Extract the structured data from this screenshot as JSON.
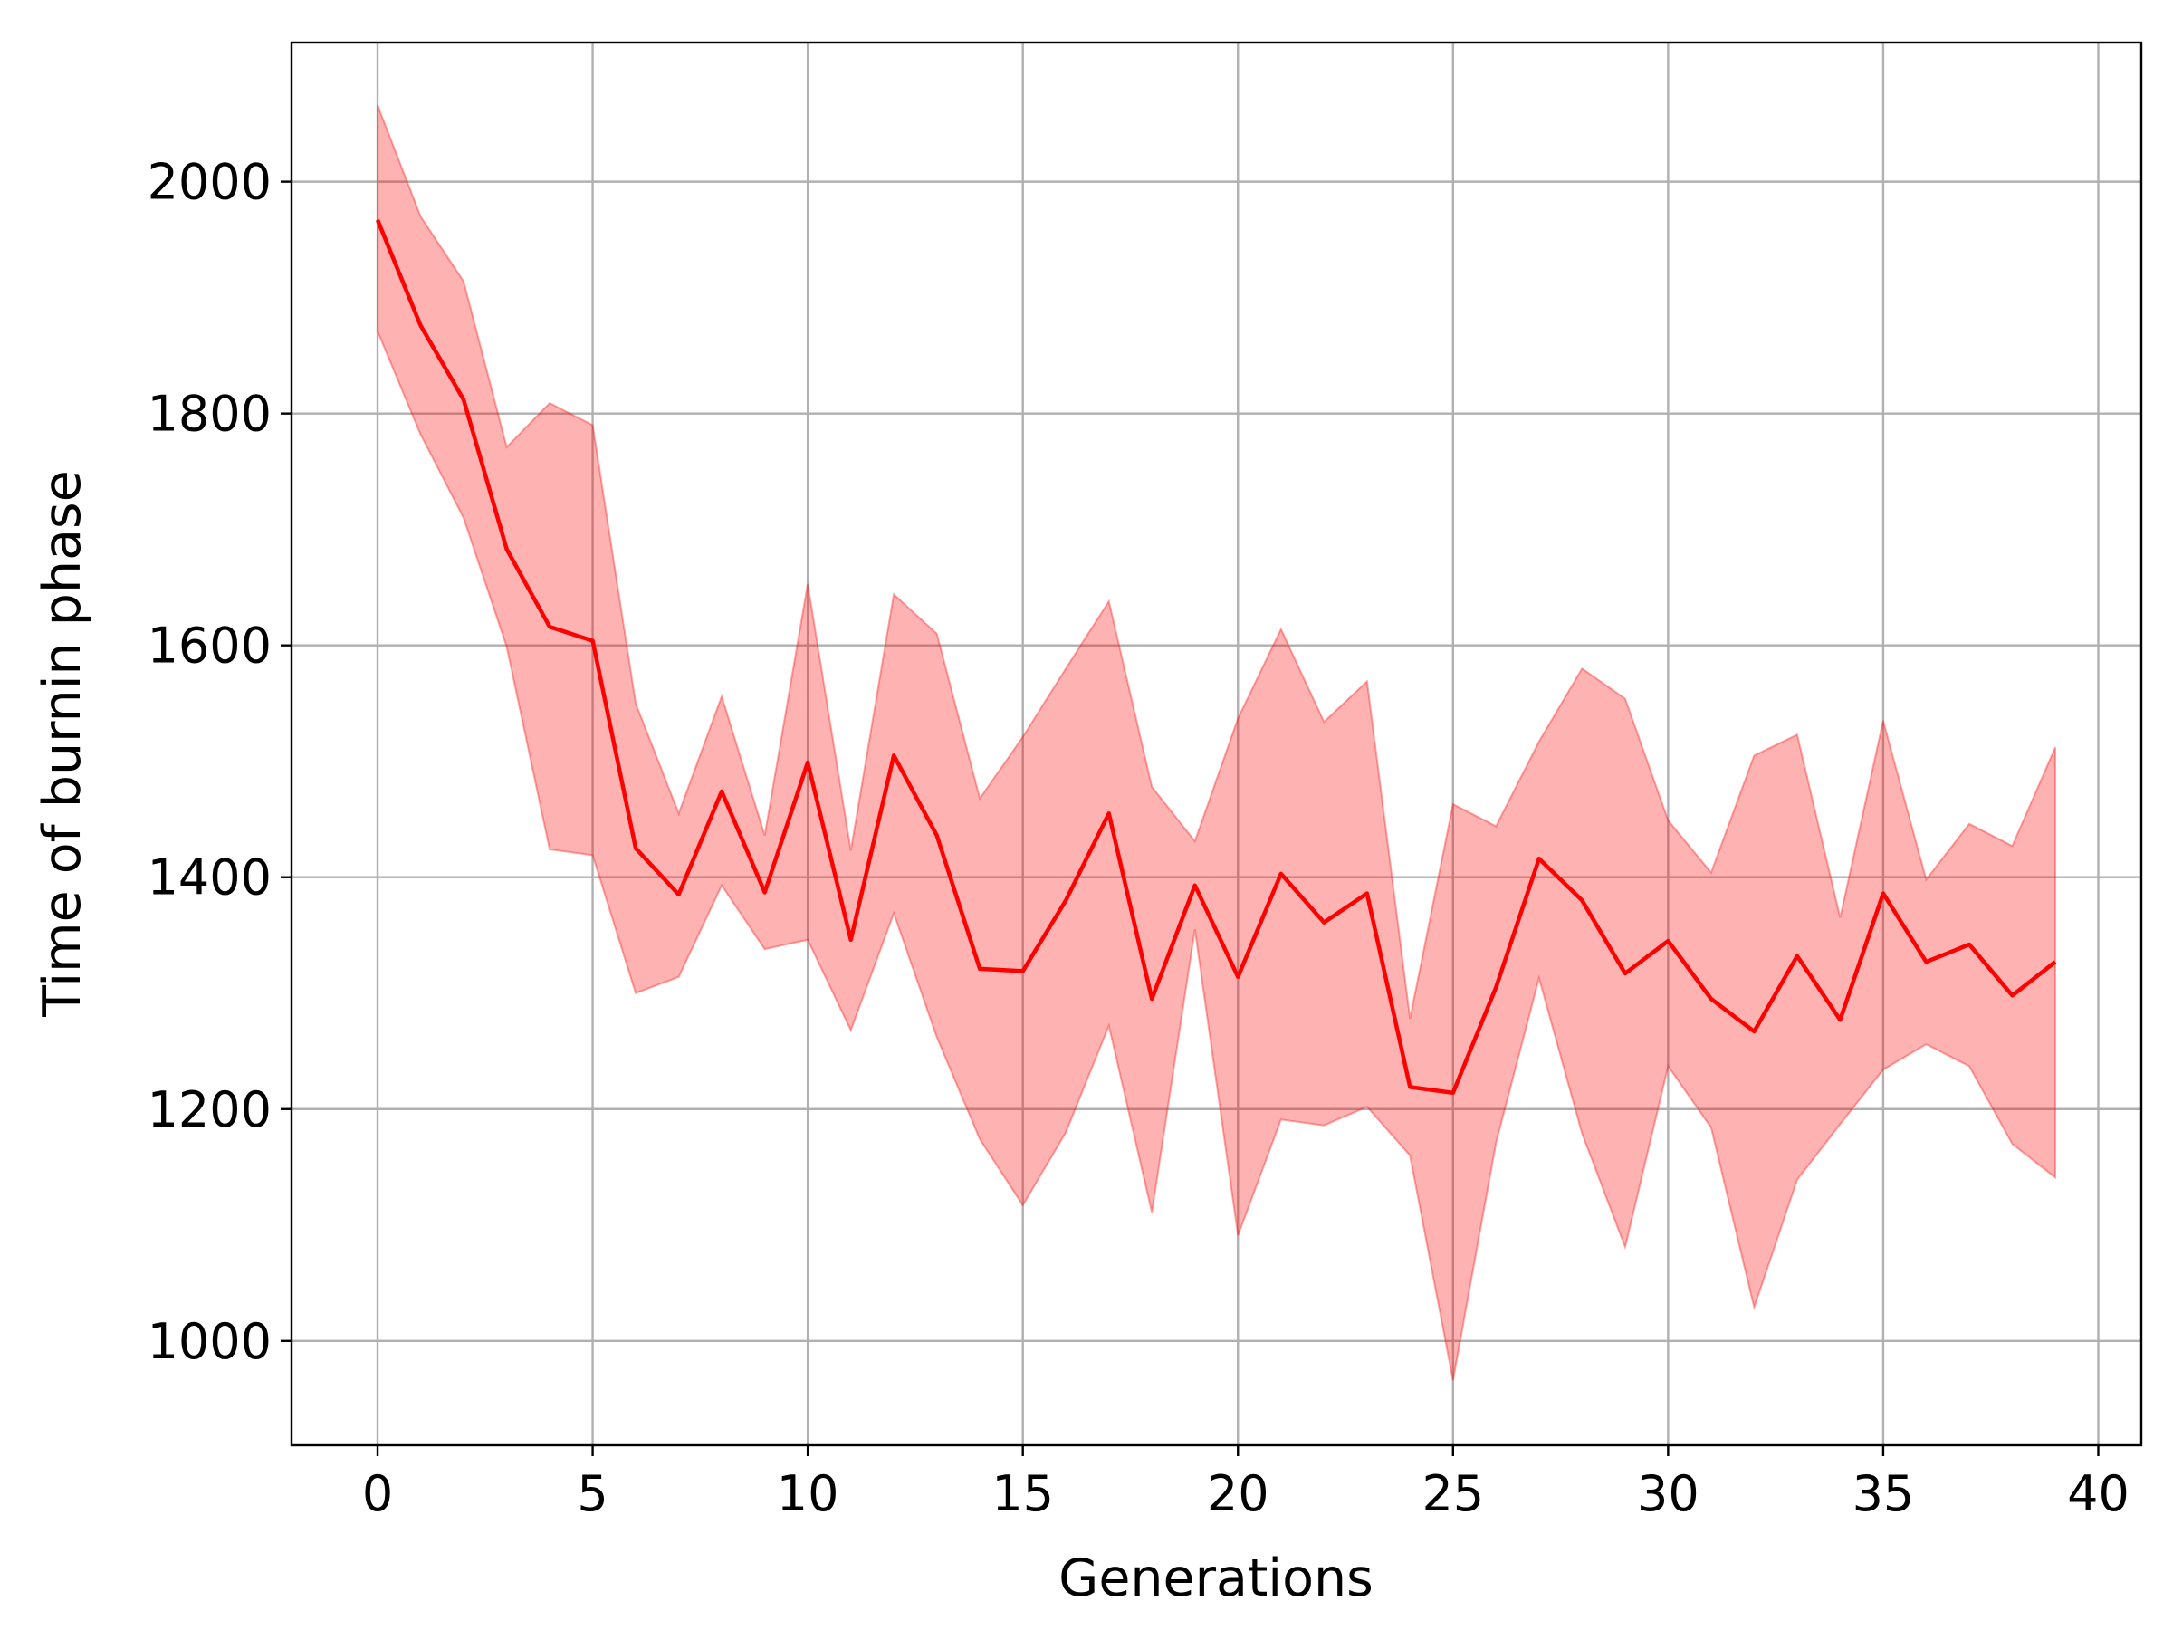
{
  "chart_data": {
    "type": "line",
    "title": "",
    "xlabel": "Generations",
    "ylabel": "Time of burnin phase",
    "xlim": [
      -2,
      41
    ],
    "ylim": [
      910,
      2120
    ],
    "xticks": [
      0,
      5,
      10,
      15,
      20,
      25,
      30,
      35,
      40
    ],
    "yticks": [
      1000,
      1200,
      1400,
      1600,
      1800,
      2000
    ],
    "grid": true,
    "legend": "none",
    "colors": {
      "line": "#ff0000",
      "band": "#ff0000",
      "band_opacity": 0.3
    },
    "x": [
      0,
      1,
      2,
      3,
      4,
      5,
      6,
      7,
      8,
      9,
      10,
      11,
      12,
      13,
      14,
      15,
      16,
      17,
      18,
      19,
      20,
      21,
      22,
      23,
      24,
      25,
      26,
      27,
      28,
      29,
      30,
      31,
      32,
      33,
      34,
      35,
      36,
      37,
      38,
      39
    ],
    "series": [
      {
        "values": [
          1967,
          1876,
          1812,
          1683,
          1616,
          1604,
          1425,
          1385,
          1474,
          1387,
          1499,
          1346,
          1505,
          1436,
          1321,
          1319,
          1380,
          1455,
          1295,
          1393,
          1314,
          1403,
          1361,
          1386,
          1219,
          1214,
          1305,
          1416,
          1380,
          1317,
          1345,
          1295,
          1267,
          1332,
          1277,
          1386,
          1327,
          1342,
          1298,
          1327
        ],
        "upper": [
          2066,
          1970,
          1914,
          1771,
          1809,
          1790,
          1550,
          1455,
          1556,
          1436,
          1653,
          1423,
          1644,
          1610,
          1468,
          1521,
          1580,
          1638,
          1478,
          1431,
          1537,
          1614,
          1534,
          1569,
          1278,
          1463,
          1444,
          1517,
          1580,
          1554,
          1449,
          1404,
          1505,
          1523,
          1365,
          1535,
          1398,
          1446,
          1427,
          1512
        ],
        "lower": [
          1871,
          1782,
          1710,
          1599,
          1424,
          1419,
          1300,
          1314,
          1393,
          1338,
          1346,
          1268,
          1369,
          1262,
          1174,
          1117,
          1180,
          1272,
          1111,
          1355,
          1091,
          1191,
          1186,
          1202,
          1160,
          966,
          1171,
          1313,
          1179,
          1081,
          1237,
          1184,
          1029,
          1139,
          1187,
          1234,
          1256,
          1237,
          1170,
          1141
        ]
      }
    ]
  }
}
